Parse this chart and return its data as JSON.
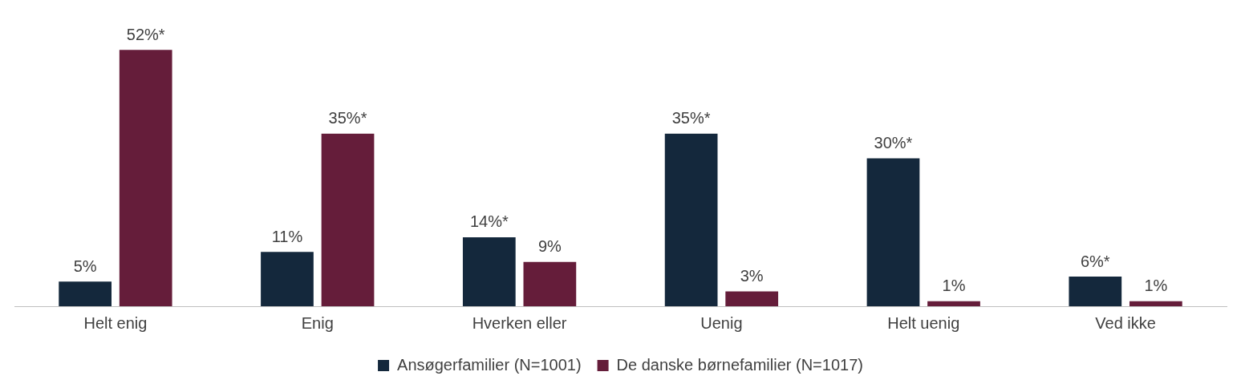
{
  "chart_data": {
    "type": "bar",
    "categories": [
      "Helt enig",
      "Enig",
      "Hverken eller",
      "Uenig",
      "Helt uenig",
      "Ved ikke"
    ],
    "series": [
      {
        "name": "Ansøgerfamilier (N=1001)",
        "color": "#14283c",
        "values": [
          5,
          11,
          14,
          35,
          30,
          6
        ],
        "value_labels": [
          "5%",
          "11%",
          "14%*",
          "35%*",
          "30%*",
          "6%*"
        ]
      },
      {
        "name": "De danske børnefamilier (N=1017)",
        "color": "#651d3a",
        "values": [
          52,
          35,
          9,
          3,
          1,
          1
        ],
        "value_labels": [
          "52%*",
          "35%*",
          "9%",
          "3%",
          "1%",
          "1%"
        ]
      }
    ],
    "legend": "bottom",
    "grid": false
  }
}
